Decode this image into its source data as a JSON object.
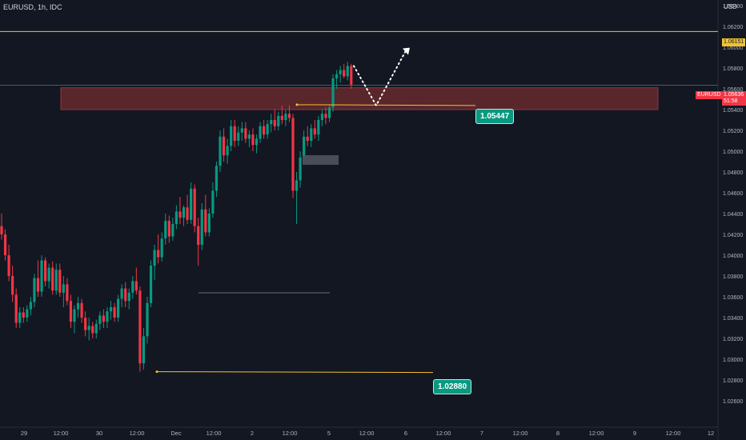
{
  "header": {
    "symbol": "EURUSD, 1h, IDC",
    "currency": "USD"
  },
  "tags": {
    "orange_level": "1.06151",
    "symbol": "EURUSD",
    "price": "1.05636",
    "countdown": "51:58"
  },
  "labels": {
    "upper": "1.05447",
    "lower": "1.02880"
  },
  "colors": {
    "background": "#131722",
    "up": "#089981",
    "down": "#f23645",
    "level": "#f2c230",
    "zone": "#6b2a30",
    "text": "#d1d4dc"
  },
  "chart_data": {
    "type": "candlestick",
    "y_axis": {
      "min": 1.025,
      "max": 1.066,
      "ticks": [
        "1.06400",
        "1.06200",
        "1.06000",
        "1.05800",
        "1.05600",
        "1.05400",
        "1.05200",
        "1.05000",
        "1.04800",
        "1.04600",
        "1.04400",
        "1.04200",
        "1.04000",
        "1.03800",
        "1.03600",
        "1.03400",
        "1.03200",
        "1.03000",
        "1.02800",
        "1.02600"
      ]
    },
    "x_axis": {
      "ticks": [
        "29",
        "12:00",
        "30",
        "12:00",
        "Dec",
        "12:00",
        "2",
        "12:00",
        "5",
        "12:00",
        "6",
        "12:00",
        "7",
        "12:00",
        "8",
        "12:00",
        "9",
        "12:00",
        "12"
      ]
    },
    "candles": [
      [
        1.0428,
        1.044,
        1.0415,
        1.042
      ],
      [
        1.042,
        1.0425,
        1.0395,
        1.04
      ],
      [
        1.04,
        1.041,
        1.0375,
        1.038
      ],
      [
        1.038,
        1.039,
        1.0355,
        1.0362
      ],
      [
        1.0362,
        1.0368,
        1.033,
        1.0335
      ],
      [
        1.0335,
        1.035,
        1.033,
        1.0345
      ],
      [
        1.0345,
        1.035,
        1.0335,
        1.034
      ],
      [
        1.034,
        1.0352,
        1.0336,
        1.0348
      ],
      [
        1.0348,
        1.036,
        1.0342,
        1.0355
      ],
      [
        1.0355,
        1.0382,
        1.035,
        1.0378
      ],
      [
        1.0378,
        1.0395,
        1.036,
        1.0365
      ],
      [
        1.0365,
        1.04,
        1.036,
        1.0395
      ],
      [
        1.0395,
        1.0398,
        1.037,
        1.0375
      ],
      [
        1.0375,
        1.0392,
        1.0368,
        1.0388
      ],
      [
        1.0388,
        1.0394,
        1.0362,
        1.0366
      ],
      [
        1.0366,
        1.0392,
        1.0362,
        1.0386
      ],
      [
        1.0386,
        1.0392,
        1.036,
        1.0364
      ],
      [
        1.0364,
        1.038,
        1.035,
        1.0372
      ],
      [
        1.0372,
        1.0378,
        1.0352,
        1.0356
      ],
      [
        1.0356,
        1.0362,
        1.033,
        1.0336
      ],
      [
        1.0336,
        1.0352,
        1.0325,
        1.0348
      ],
      [
        1.0348,
        1.036,
        1.034,
        1.0354
      ],
      [
        1.0354,
        1.0358,
        1.0335,
        1.034
      ],
      [
        1.034,
        1.0346,
        1.0322,
        1.0328
      ],
      [
        1.0328,
        1.034,
        1.0318,
        1.0332
      ],
      [
        1.0332,
        1.0336,
        1.032,
        1.0325
      ],
      [
        1.0325,
        1.0338,
        1.032,
        1.0334
      ],
      [
        1.0334,
        1.0346,
        1.0328,
        1.0342
      ],
      [
        1.0342,
        1.0348,
        1.033,
        1.0336
      ],
      [
        1.0336,
        1.035,
        1.033,
        1.0346
      ],
      [
        1.0346,
        1.0356,
        1.0338,
        1.035
      ],
      [
        1.035,
        1.0354,
        1.0336,
        1.034
      ],
      [
        1.034,
        1.0362,
        1.0336,
        1.0358
      ],
      [
        1.0358,
        1.0372,
        1.035,
        1.0368
      ],
      [
        1.0368,
        1.0374,
        1.035,
        1.0356
      ],
      [
        1.0356,
        1.0368,
        1.0348,
        1.0364
      ],
      [
        1.0364,
        1.038,
        1.0358,
        1.0375
      ],
      [
        1.0375,
        1.0388,
        1.0362,
        1.0366
      ],
      [
        1.0366,
        1.037,
        1.0288,
        1.0296
      ],
      [
        1.0296,
        1.033,
        1.029,
        1.0322
      ],
      [
        1.0322,
        1.036,
        1.0315,
        1.0354
      ],
      [
        1.0354,
        1.0395,
        1.035,
        1.039
      ],
      [
        1.039,
        1.041,
        1.0376,
        1.0405
      ],
      [
        1.0405,
        1.042,
        1.0392,
        1.0398
      ],
      [
        1.0398,
        1.0422,
        1.0394,
        1.0416
      ],
      [
        1.0416,
        1.044,
        1.041,
        1.0433
      ],
      [
        1.0433,
        1.0438,
        1.0412,
        1.0418
      ],
      [
        1.0418,
        1.0436,
        1.0414,
        1.043
      ],
      [
        1.043,
        1.0448,
        1.0425,
        1.0442
      ],
      [
        1.0442,
        1.0456,
        1.043,
        1.0436
      ],
      [
        1.0436,
        1.0448,
        1.0428,
        1.0446
      ],
      [
        1.0446,
        1.0458,
        1.043,
        1.0434
      ],
      [
        1.0434,
        1.047,
        1.043,
        1.0464
      ],
      [
        1.0464,
        1.0468,
        1.0422,
        1.0428
      ],
      [
        1.0428,
        1.0436,
        1.039,
        1.041
      ],
      [
        1.041,
        1.045,
        1.0405,
        1.0444
      ],
      [
        1.0444,
        1.0458,
        1.0418,
        1.0422
      ],
      [
        1.0422,
        1.0445,
        1.0418,
        1.044
      ],
      [
        1.044,
        1.047,
        1.0436,
        1.0462
      ],
      [
        1.0462,
        1.049,
        1.0456,
        1.0486
      ],
      [
        1.0486,
        1.052,
        1.048,
        1.0514
      ],
      [
        1.0514,
        1.0522,
        1.049,
        1.0496
      ],
      [
        1.0496,
        1.0512,
        1.0488,
        1.0505
      ],
      [
        1.0505,
        1.053,
        1.05,
        1.0524
      ],
      [
        1.0524,
        1.053,
        1.0504,
        1.051
      ],
      [
        1.051,
        1.0524,
        1.0505,
        1.0518
      ],
      [
        1.0518,
        1.0528,
        1.051,
        1.0522
      ],
      [
        1.0522,
        1.0528,
        1.0508,
        1.0512
      ],
      [
        1.0512,
        1.052,
        1.0504,
        1.0516
      ],
      [
        1.0516,
        1.0522,
        1.05,
        1.0506
      ],
      [
        1.0506,
        1.0516,
        1.0498,
        1.0512
      ],
      [
        1.0512,
        1.0528,
        1.0508,
        1.0524
      ],
      [
        1.0524,
        1.053,
        1.0512,
        1.0516
      ],
      [
        1.0516,
        1.053,
        1.0512,
        1.0526
      ],
      [
        1.0526,
        1.0536,
        1.0518,
        1.053
      ],
      [
        1.053,
        1.054,
        1.052,
        1.0524
      ],
      [
        1.0524,
        1.0538,
        1.052,
        1.0534
      ],
      [
        1.0534,
        1.0544,
        1.0526,
        1.053
      ],
      [
        1.053,
        1.054,
        1.0524,
        1.0536
      ],
      [
        1.0536,
        1.0544,
        1.0528,
        1.0532
      ],
      [
        1.0532,
        1.0536,
        1.0455,
        1.0462
      ],
      [
        1.0462,
        1.048,
        1.043,
        1.0472
      ],
      [
        1.0472,
        1.05,
        1.0465,
        1.0494
      ],
      [
        1.0494,
        1.052,
        1.0488,
        1.0514
      ],
      [
        1.0514,
        1.0524,
        1.0505,
        1.051
      ],
      [
        1.051,
        1.0526,
        1.0504,
        1.0522
      ],
      [
        1.0522,
        1.053,
        1.0512,
        1.0516
      ],
      [
        1.0516,
        1.0534,
        1.051,
        1.053
      ],
      [
        1.053,
        1.054,
        1.0524,
        1.0536
      ],
      [
        1.0536,
        1.0542,
        1.0526,
        1.0532
      ],
      [
        1.0532,
        1.0545,
        1.0528,
        1.0542
      ],
      [
        1.0542,
        1.0574,
        1.0538,
        1.057
      ],
      [
        1.057,
        1.0578,
        1.056,
        1.0574
      ],
      [
        1.0574,
        1.0582,
        1.0566,
        1.0578
      ],
      [
        1.0578,
        1.0584,
        1.057,
        1.0572
      ],
      [
        1.0572,
        1.0586,
        1.0568,
        1.0582
      ],
      [
        1.0582,
        1.0584,
        1.056,
        1.0564
      ]
    ],
    "zone": {
      "top": 1.0561,
      "bottom": 1.054
    },
    "levels": [
      1.06151,
      1.05447,
      1.0288
    ],
    "projection": [
      1.0582,
      1.0544,
      1.0598
    ]
  }
}
